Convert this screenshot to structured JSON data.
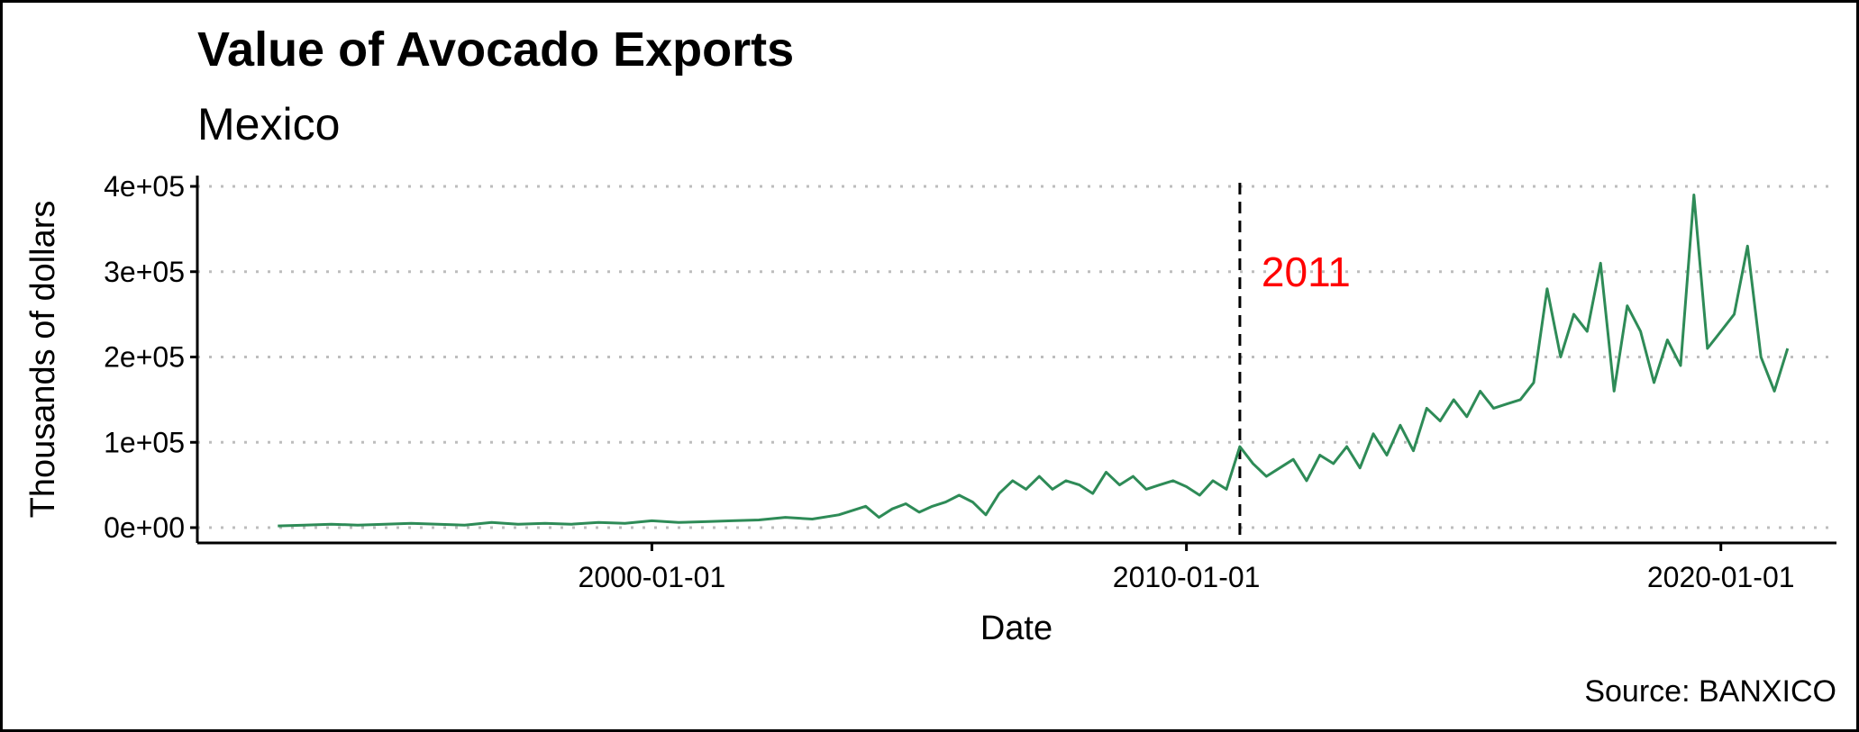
{
  "chart_data": {
    "type": "line",
    "title": "Value of Avocado Exports",
    "subtitle": "Mexico",
    "xlabel": "Date",
    "ylabel": "Thousands of dollars",
    "caption": "Source: BANXICO",
    "x_ticks": [
      "2000-01-01",
      "2010-01-01",
      "2020-01-01"
    ],
    "y_ticks": [
      "0e+00",
      "1e+05",
      "2e+05",
      "3e+05",
      "4e+05"
    ],
    "ylim": [
      0,
      400000
    ],
    "xlim": [
      "1991-07-01",
      "2022-03-01"
    ],
    "grid": "horizontal dotted",
    "line_color": "#2e8b57",
    "annotation": {
      "text": "2011",
      "color": "#ff0000",
      "x": "2011-01-01",
      "y": 300000,
      "line_style": "dashed vertical"
    },
    "series": [
      {
        "x": [
          "1993-01-01",
          "1993-07-01",
          "1994-01-01",
          "1994-07-01",
          "1995-01-01",
          "1995-07-01",
          "1996-01-01",
          "1996-07-01",
          "1997-01-01",
          "1997-07-01",
          "1998-01-01",
          "1998-07-01",
          "1999-01-01",
          "1999-07-01",
          "2000-01-01",
          "2000-07-01",
          "2001-01-01",
          "2001-07-01",
          "2002-01-01",
          "2002-07-01",
          "2003-01-01",
          "2003-07-01",
          "2004-01-01",
          "2004-04-01",
          "2004-07-01",
          "2004-10-01",
          "2005-01-01",
          "2005-04-01",
          "2005-07-01",
          "2005-10-01",
          "2006-01-01",
          "2006-04-01",
          "2006-07-01",
          "2006-10-01",
          "2007-01-01",
          "2007-04-01",
          "2007-07-01",
          "2007-10-01",
          "2008-01-01",
          "2008-04-01",
          "2008-07-01",
          "2008-10-01",
          "2009-01-01",
          "2009-04-01",
          "2009-07-01",
          "2009-10-01",
          "2010-01-01",
          "2010-04-01",
          "2010-07-01",
          "2010-10-01",
          "2011-01-01",
          "2011-04-01",
          "2011-07-01",
          "2011-10-01",
          "2012-01-01",
          "2012-04-01",
          "2012-07-01",
          "2012-10-01",
          "2013-01-01",
          "2013-04-01",
          "2013-07-01",
          "2013-10-01",
          "2014-01-01",
          "2014-04-01",
          "2014-07-01",
          "2014-10-01",
          "2015-01-01",
          "2015-04-01",
          "2015-07-01",
          "2015-10-01",
          "2016-01-01",
          "2016-04-01",
          "2016-07-01",
          "2016-10-01",
          "2017-01-01",
          "2017-04-01",
          "2017-07-01",
          "2017-10-01",
          "2018-01-01",
          "2018-04-01",
          "2018-07-01",
          "2018-10-01",
          "2019-01-01",
          "2019-04-01",
          "2019-07-01",
          "2019-10-01",
          "2020-01-01",
          "2020-04-01",
          "2020-07-01",
          "2020-10-01",
          "2021-01-01",
          "2021-04-01"
        ],
        "values": [
          2000,
          3000,
          4000,
          3000,
          4000,
          5000,
          4000,
          3000,
          6000,
          4000,
          5000,
          4000,
          6000,
          5000,
          8000,
          6000,
          7000,
          8000,
          9000,
          12000,
          10000,
          15000,
          25000,
          12000,
          22000,
          28000,
          18000,
          25000,
          30000,
          38000,
          30000,
          15000,
          40000,
          55000,
          45000,
          60000,
          45000,
          55000,
          50000,
          40000,
          65000,
          50000,
          60000,
          45000,
          50000,
          55000,
          48000,
          38000,
          55000,
          45000,
          95000,
          75000,
          60000,
          70000,
          80000,
          55000,
          85000,
          75000,
          95000,
          70000,
          110000,
          85000,
          120000,
          90000,
          140000,
          125000,
          150000,
          130000,
          160000,
          140000,
          145000,
          150000,
          170000,
          280000,
          200000,
          250000,
          230000,
          310000,
          160000,
          260000,
          230000,
          170000,
          220000,
          190000,
          390000,
          210000,
          230000,
          250000,
          330000,
          200000,
          160000,
          210000
        ]
      }
    ]
  }
}
